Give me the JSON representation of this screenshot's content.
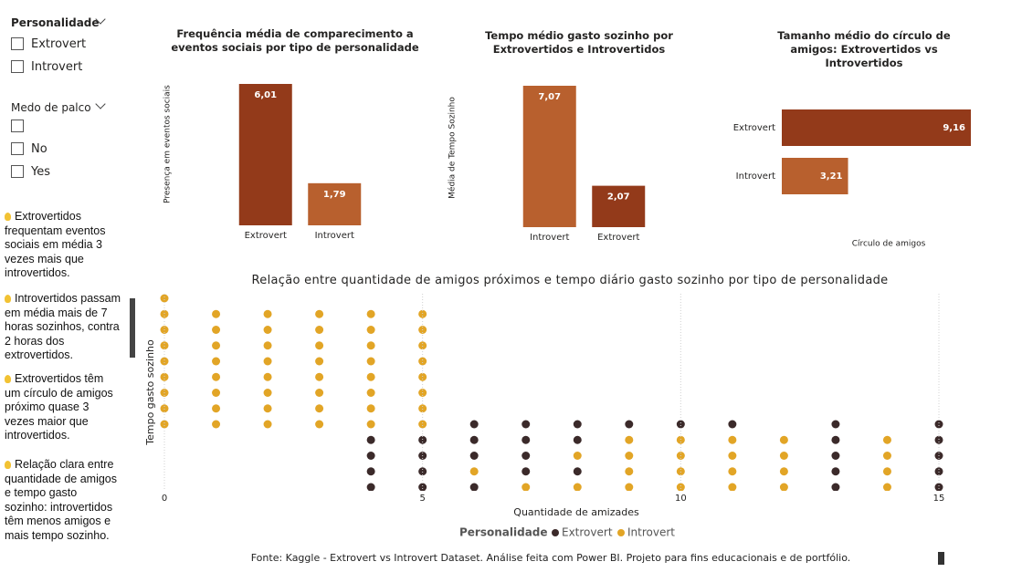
{
  "slicers": [
    {
      "title": "Personalidade",
      "options": [
        "Extrovert",
        "Introvert"
      ]
    },
    {
      "title": "Medo de palco",
      "options": [
        null,
        "No",
        "Yes"
      ]
    }
  ],
  "notes": [
    "Extrovertidos frequentam eventos sociais em média 3 vezes mais que introvertidos.",
    "Introvertidos passam em média mais de 7 horas sozinhos, contra 2 horas dos extrovertidos.",
    "Extrovertidos têm um círculo de amigos próximo quase 3 vezes maior que introvertidos.",
    "Relação clara entre quantidade de amigos e tempo gasto sozinho: introvertidos têm menos amigos e mais tempo sozinho."
  ],
  "chart_data": [
    {
      "type": "bar",
      "title": "Frequência média de comparecimento a eventos sociais por tipo de personalidade",
      "y_label": "Presença em eventos sociais",
      "categories": [
        "Extrovert",
        "Introvert"
      ],
      "values": [
        6.01,
        1.79
      ],
      "value_labels": [
        "6,01",
        "1,79"
      ],
      "colors": [
        "#933a1a",
        "#b8602e"
      ]
    },
    {
      "type": "bar",
      "title": "Tempo médio gasto sozinho por Extrovertidos e Introvertidos",
      "y_label": "Média de Tempo Sozinho",
      "categories": [
        "Introvert",
        "Extrovert"
      ],
      "values": [
        7.07,
        2.07
      ],
      "value_labels": [
        "7,07",
        "2,07"
      ],
      "colors": [
        "#b8602e",
        "#933a1a"
      ]
    },
    {
      "type": "barh",
      "title": "Tamanho médio do círculo de amigos: Extrovertidos vs Introvertidos",
      "x_label": "Círculo de amigos",
      "categories": [
        "Extrovert",
        "Introvert"
      ],
      "values": [
        9.16,
        3.21
      ],
      "value_labels": [
        "9,16",
        "3,21"
      ],
      "colors": [
        "#933a1a",
        "#b8602e"
      ]
    },
    {
      "type": "scatter",
      "title": "Relação entre quantidade de amigos próximos e tempo diário gasto sozinho por tipo de personalidade",
      "x_label": "Quantidade de amizades",
      "y_label": "Tempo gasto sozinho",
      "legend_title": "Personalidade",
      "xlim": [
        0,
        15
      ],
      "xticks": [
        0,
        5,
        10,
        15
      ],
      "ylim": [
        0,
        12
      ],
      "grid": true,
      "series": [
        {
          "name": "Extrovert",
          "color": "#3b2a2a",
          "x": [
            4,
            4,
            4,
            4,
            5,
            5,
            5,
            5,
            6,
            6,
            6,
            6,
            7,
            7,
            7,
            7,
            8,
            8,
            8,
            9,
            10,
            11,
            13,
            13,
            13,
            13,
            13,
            15,
            15,
            15,
            15,
            15
          ],
          "values": [
            0,
            1,
            2,
            3,
            0,
            1,
            2,
            3,
            4,
            3,
            2,
            0,
            4,
            3,
            2,
            1,
            4,
            3,
            1,
            4,
            4,
            4,
            4,
            3,
            2,
            1,
            0,
            4,
            3,
            2,
            1,
            0
          ]
        },
        {
          "name": "Introvert",
          "color": "#e2a526",
          "x": [
            0,
            0,
            0,
            0,
            0,
            0,
            0,
            0,
            0,
            1,
            1,
            1,
            1,
            1,
            1,
            1,
            1,
            2,
            2,
            2,
            2,
            2,
            2,
            2,
            2,
            3,
            3,
            3,
            3,
            3,
            3,
            3,
            3,
            4,
            4,
            4,
            4,
            4,
            4,
            4,
            4,
            5,
            5,
            5,
            5,
            5,
            5,
            5,
            5,
            6,
            7,
            8,
            8,
            9,
            9,
            9,
            9,
            10,
            10,
            10,
            10,
            11,
            11,
            11,
            11,
            12,
            12,
            12,
            12,
            14,
            14,
            14,
            14
          ],
          "values": [
            12,
            11,
            10,
            9,
            8,
            7,
            6,
            5,
            4,
            11,
            10,
            9,
            8,
            7,
            6,
            5,
            4,
            11,
            10,
            9,
            8,
            7,
            6,
            5,
            4,
            11,
            10,
            9,
            8,
            7,
            6,
            5,
            4,
            11,
            10,
            9,
            8,
            7,
            6,
            5,
            4,
            11,
            10,
            9,
            8,
            7,
            6,
            5,
            4,
            1,
            0,
            2,
            0,
            3,
            2,
            1,
            0,
            3,
            2,
            1,
            0,
            3,
            2,
            1,
            0,
            3,
            2,
            1,
            0,
            3,
            2,
            1,
            0
          ]
        }
      ]
    }
  ],
  "footer": "Fonte: Kaggle - Extrovert vs Introvert Dataset. Análise feita com Power BI. Projeto para fins educacionais e de portfólio."
}
